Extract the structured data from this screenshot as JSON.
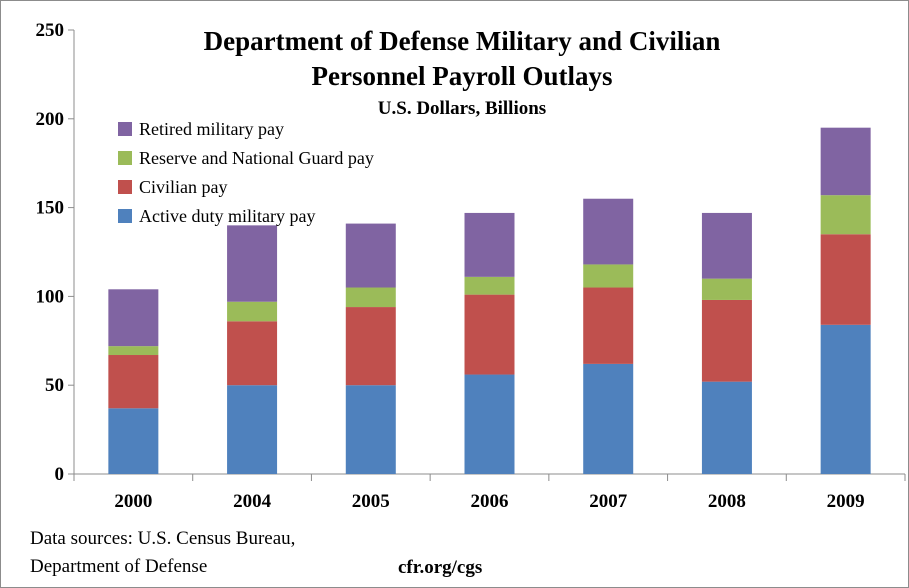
{
  "chart_data": {
    "type": "bar",
    "stacked": true,
    "title": "Department of Defense Military and Civilian",
    "title_line2": "Personnel Payroll Outlays",
    "subtitle": "U.S. Dollars, Billions",
    "xlabel": "",
    "ylabel": "",
    "ylim": [
      0,
      250
    ],
    "yticks": [
      0,
      50,
      100,
      150,
      200,
      250
    ],
    "grid": false,
    "legend_position": "top-left",
    "categories": [
      "2000",
      "2004",
      "2005",
      "2006",
      "2007",
      "2008",
      "2009"
    ],
    "series": [
      {
        "name": "Active duty military pay",
        "color": "#4f81bd",
        "values": [
          37,
          50,
          50,
          56,
          62,
          52,
          84
        ]
      },
      {
        "name": "Civilian pay",
        "color": "#c0504d",
        "values": [
          30,
          36,
          44,
          45,
          43,
          46,
          51
        ]
      },
      {
        "name": "Reserve and National Guard pay",
        "color": "#9bbb59",
        "values": [
          5,
          11,
          11,
          10,
          13,
          12,
          22
        ]
      },
      {
        "name": "Retired military pay",
        "color": "#8064a2",
        "values": [
          32,
          43,
          36,
          36,
          37,
          37,
          38
        ]
      }
    ]
  },
  "footer": {
    "source_line1": "Data sources: U.S. Census Bureau,",
    "source_line2": "Department of Defense",
    "credit": "cfr.org/cgs"
  }
}
